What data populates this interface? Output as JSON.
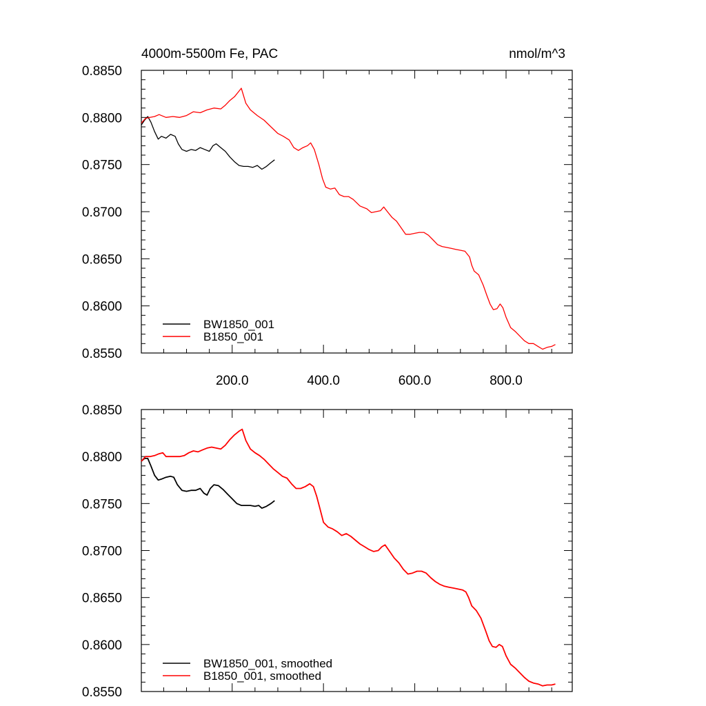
{
  "header": {
    "title": "4000m-5500m Fe, PAC",
    "units": "nmol/m^3"
  },
  "colors": {
    "series_1": "#000000",
    "series_2": "#ff0000",
    "axis": "#000000",
    "background": "#ffffff"
  },
  "chart_data": [
    {
      "type": "line",
      "title": "4000m-5500m Fe, PAC",
      "units_label": "nmol/m^3",
      "xlabel": "",
      "ylabel": "",
      "xlim": [
        1,
        945
      ],
      "ylim": [
        0.855,
        0.885
      ],
      "x_tick_labels": [
        "200.0",
        "400.0",
        "600.0",
        "800.0"
      ],
      "y_tick_labels": [
        "0.8550",
        "0.8600",
        "0.8650",
        "0.8700",
        "0.8750",
        "0.8800",
        "0.8850"
      ],
      "grid": false,
      "legend_position": "bottom-left",
      "series": [
        {
          "name": "BW1850_001",
          "color": "#000000",
          "points": [
            [
              1,
              0.8792
            ],
            [
              8,
              0.8797
            ],
            [
              15,
              0.8801
            ],
            [
              22,
              0.8795
            ],
            [
              30,
              0.8785
            ],
            [
              38,
              0.8777
            ],
            [
              45,
              0.878
            ],
            [
              55,
              0.8778
            ],
            [
              65,
              0.8782
            ],
            [
              75,
              0.878
            ],
            [
              82,
              0.8772
            ],
            [
              90,
              0.8766
            ],
            [
              100,
              0.8764
            ],
            [
              110,
              0.8766
            ],
            [
              120,
              0.8765
            ],
            [
              130,
              0.8768
            ],
            [
              140,
              0.8766
            ],
            [
              150,
              0.8764
            ],
            [
              158,
              0.877
            ],
            [
              165,
              0.8772
            ],
            [
              175,
              0.8768
            ],
            [
              185,
              0.8764
            ],
            [
              195,
              0.8758
            ],
            [
              205,
              0.8753
            ],
            [
              215,
              0.8749
            ],
            [
              225,
              0.8748
            ],
            [
              235,
              0.8748
            ],
            [
              245,
              0.8747
            ],
            [
              255,
              0.8749
            ],
            [
              265,
              0.8745
            ],
            [
              275,
              0.8748
            ],
            [
              285,
              0.8752
            ],
            [
              293,
              0.8755
            ]
          ]
        },
        {
          "name": "B1850_001",
          "color": "#ff0000",
          "points": [
            [
              1,
              0.8794
            ],
            [
              10,
              0.8799
            ],
            [
              20,
              0.88
            ],
            [
              30,
              0.8801
            ],
            [
              40,
              0.8803
            ],
            [
              55,
              0.88
            ],
            [
              70,
              0.8801
            ],
            [
              85,
              0.88
            ],
            [
              100,
              0.8802
            ],
            [
              115,
              0.8806
            ],
            [
              130,
              0.8805
            ],
            [
              145,
              0.8808
            ],
            [
              160,
              0.881
            ],
            [
              175,
              0.8809
            ],
            [
              185,
              0.8813
            ],
            [
              195,
              0.8818
            ],
            [
              205,
              0.8822
            ],
            [
              215,
              0.8828
            ],
            [
              220,
              0.8831
            ],
            [
              230,
              0.8815
            ],
            [
              240,
              0.8808
            ],
            [
              255,
              0.8802
            ],
            [
              270,
              0.8797
            ],
            [
              285,
              0.879
            ],
            [
              300,
              0.8783
            ],
            [
              312,
              0.878
            ],
            [
              325,
              0.8776
            ],
            [
              335,
              0.8768
            ],
            [
              345,
              0.8765
            ],
            [
              355,
              0.8768
            ],
            [
              365,
              0.877
            ],
            [
              372,
              0.8773
            ],
            [
              380,
              0.8766
            ],
            [
              390,
              0.875
            ],
            [
              398,
              0.8735
            ],
            [
              405,
              0.8726
            ],
            [
              415,
              0.8724
            ],
            [
              425,
              0.8725
            ],
            [
              435,
              0.8718
            ],
            [
              445,
              0.8716
            ],
            [
              455,
              0.8716
            ],
            [
              465,
              0.8713
            ],
            [
              480,
              0.8706
            ],
            [
              495,
              0.8703
            ],
            [
              505,
              0.8699
            ],
            [
              515,
              0.87
            ],
            [
              525,
              0.8701
            ],
            [
              532,
              0.8705
            ],
            [
              540,
              0.87
            ],
            [
              550,
              0.8694
            ],
            [
              560,
              0.869
            ],
            [
              570,
              0.8683
            ],
            [
              580,
              0.8676
            ],
            [
              590,
              0.8676
            ],
            [
              600,
              0.8677
            ],
            [
              610,
              0.8678
            ],
            [
              620,
              0.8678
            ],
            [
              630,
              0.8675
            ],
            [
              640,
              0.867
            ],
            [
              650,
              0.8665
            ],
            [
              660,
              0.8663
            ],
            [
              670,
              0.8662
            ],
            [
              680,
              0.8661
            ],
            [
              690,
              0.866
            ],
            [
              700,
              0.8659
            ],
            [
              710,
              0.8658
            ],
            [
              720,
              0.8652
            ],
            [
              725,
              0.8643
            ],
            [
              730,
              0.8637
            ],
            [
              740,
              0.8633
            ],
            [
              750,
              0.8622
            ],
            [
              758,
              0.8611
            ],
            [
              765,
              0.8602
            ],
            [
              772,
              0.8596
            ],
            [
              780,
              0.8597
            ],
            [
              787,
              0.8602
            ],
            [
              793,
              0.8598
            ],
            [
              800,
              0.8588
            ],
            [
              810,
              0.8577
            ],
            [
              820,
              0.8573
            ],
            [
              830,
              0.8568
            ],
            [
              840,
              0.8563
            ],
            [
              850,
              0.856
            ],
            [
              860,
              0.856
            ],
            [
              870,
              0.8557
            ],
            [
              880,
              0.8554
            ],
            [
              890,
              0.8556
            ],
            [
              900,
              0.8557
            ],
            [
              908,
              0.8559
            ]
          ]
        }
      ]
    },
    {
      "type": "line",
      "title": "",
      "xlabel": "",
      "ylabel": "",
      "xlim": [
        1,
        945
      ],
      "ylim": [
        0.855,
        0.885
      ],
      "y_tick_labels": [
        "0.8550",
        "0.8600",
        "0.8650",
        "0.8700",
        "0.8750",
        "0.8800",
        "0.8850"
      ],
      "grid": false,
      "legend_position": "bottom-left",
      "series": [
        {
          "name": "BW1850_001, smoothed",
          "color": "#000000",
          "points": [
            [
              1,
              0.8795
            ],
            [
              8,
              0.8798
            ],
            [
              15,
              0.8798
            ],
            [
              22,
              0.879
            ],
            [
              30,
              0.878
            ],
            [
              38,
              0.8775
            ],
            [
              45,
              0.8776
            ],
            [
              55,
              0.8778
            ],
            [
              65,
              0.8779
            ],
            [
              72,
              0.8778
            ],
            [
              80,
              0.877
            ],
            [
              90,
              0.8764
            ],
            [
              100,
              0.8763
            ],
            [
              110,
              0.8764
            ],
            [
              120,
              0.8764
            ],
            [
              130,
              0.8766
            ],
            [
              138,
              0.8761
            ],
            [
              145,
              0.8759
            ],
            [
              152,
              0.8766
            ],
            [
              160,
              0.877
            ],
            [
              170,
              0.8769
            ],
            [
              180,
              0.8765
            ],
            [
              190,
              0.876
            ],
            [
              200,
              0.8755
            ],
            [
              210,
              0.875
            ],
            [
              220,
              0.8748
            ],
            [
              230,
              0.8748
            ],
            [
              240,
              0.8748
            ],
            [
              250,
              0.8747
            ],
            [
              258,
              0.8748
            ],
            [
              265,
              0.8745
            ],
            [
              275,
              0.8747
            ],
            [
              285,
              0.875
            ],
            [
              293,
              0.8753
            ]
          ]
        },
        {
          "name": "B1850_001, smoothed",
          "color": "#ff0000",
          "points": [
            [
              1,
              0.8795
            ],
            [
              10,
              0.88
            ],
            [
              20,
              0.88
            ],
            [
              30,
              0.8801
            ],
            [
              40,
              0.8803
            ],
            [
              48,
              0.8804
            ],
            [
              55,
              0.88
            ],
            [
              65,
              0.88
            ],
            [
              75,
              0.88
            ],
            [
              85,
              0.88
            ],
            [
              95,
              0.8801
            ],
            [
              105,
              0.8804
            ],
            [
              115,
              0.8806
            ],
            [
              125,
              0.8805
            ],
            [
              135,
              0.8807
            ],
            [
              145,
              0.8809
            ],
            [
              155,
              0.881
            ],
            [
              165,
              0.8809
            ],
            [
              175,
              0.8808
            ],
            [
              185,
              0.8812
            ],
            [
              195,
              0.8818
            ],
            [
              205,
              0.8823
            ],
            [
              215,
              0.8827
            ],
            [
              222,
              0.8829
            ],
            [
              230,
              0.8817
            ],
            [
              240,
              0.8808
            ],
            [
              250,
              0.8804
            ],
            [
              260,
              0.8801
            ],
            [
              270,
              0.8797
            ],
            [
              280,
              0.8792
            ],
            [
              290,
              0.8787
            ],
            [
              300,
              0.8783
            ],
            [
              310,
              0.8779
            ],
            [
              320,
              0.8777
            ],
            [
              330,
              0.8771
            ],
            [
              340,
              0.8766
            ],
            [
              350,
              0.8766
            ],
            [
              360,
              0.8768
            ],
            [
              370,
              0.8771
            ],
            [
              378,
              0.8768
            ],
            [
              385,
              0.8758
            ],
            [
              392,
              0.8745
            ],
            [
              400,
              0.873
            ],
            [
              410,
              0.8725
            ],
            [
              420,
              0.8723
            ],
            [
              430,
              0.872
            ],
            [
              440,
              0.8716
            ],
            [
              450,
              0.8718
            ],
            [
              460,
              0.8715
            ],
            [
              470,
              0.8711
            ],
            [
              480,
              0.8707
            ],
            [
              490,
              0.8704
            ],
            [
              500,
              0.8701
            ],
            [
              510,
              0.8699
            ],
            [
              520,
              0.87
            ],
            [
              528,
              0.8704
            ],
            [
              535,
              0.8706
            ],
            [
              545,
              0.8699
            ],
            [
              555,
              0.8692
            ],
            [
              565,
              0.8687
            ],
            [
              575,
              0.868
            ],
            [
              585,
              0.8675
            ],
            [
              595,
              0.8676
            ],
            [
              605,
              0.8678
            ],
            [
              615,
              0.8678
            ],
            [
              625,
              0.8676
            ],
            [
              635,
              0.8671
            ],
            [
              645,
              0.8667
            ],
            [
              655,
              0.8664
            ],
            [
              665,
              0.8662
            ],
            [
              675,
              0.8661
            ],
            [
              685,
              0.866
            ],
            [
              695,
              0.8659
            ],
            [
              705,
              0.8658
            ],
            [
              712,
              0.8656
            ],
            [
              718,
              0.865
            ],
            [
              725,
              0.8641
            ],
            [
              735,
              0.8636
            ],
            [
              745,
              0.8628
            ],
            [
              755,
              0.8615
            ],
            [
              763,
              0.8604
            ],
            [
              770,
              0.8598
            ],
            [
              778,
              0.8597
            ],
            [
              785,
              0.86
            ],
            [
              792,
              0.8598
            ],
            [
              800,
              0.8588
            ],
            [
              810,
              0.8579
            ],
            [
              820,
              0.8575
            ],
            [
              830,
              0.857
            ],
            [
              840,
              0.8565
            ],
            [
              850,
              0.8561
            ],
            [
              860,
              0.8559
            ],
            [
              870,
              0.8558
            ],
            [
              880,
              0.8556
            ],
            [
              890,
              0.8557
            ],
            [
              900,
              0.8557
            ],
            [
              908,
              0.8558
            ]
          ]
        }
      ]
    }
  ]
}
